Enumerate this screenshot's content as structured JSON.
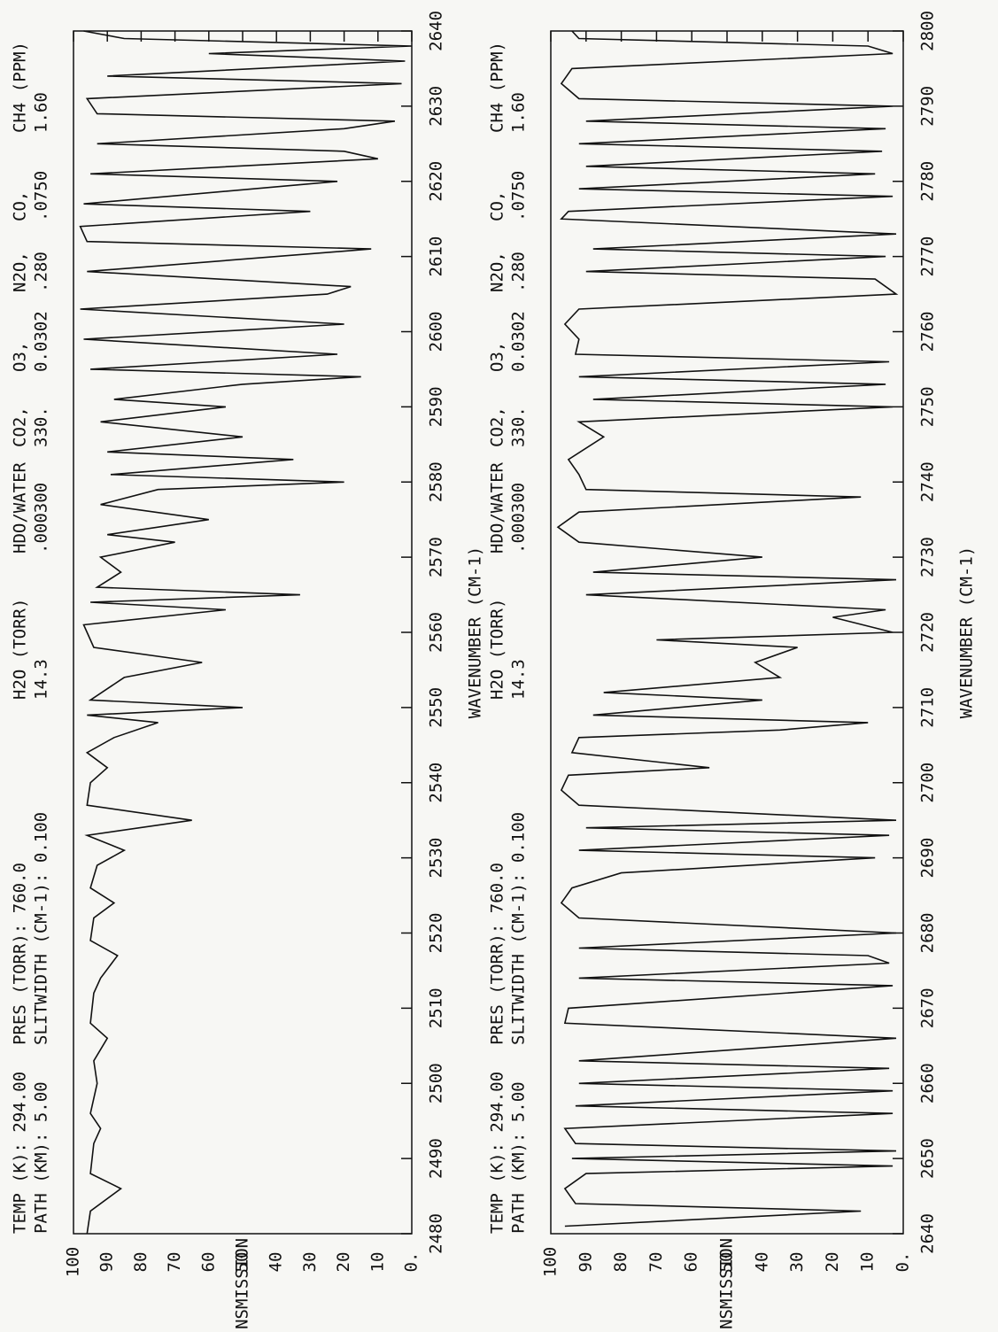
{
  "chart_data": [
    {
      "type": "line",
      "header": [
        [
          "TEMP (K): 294.00",
          "PATH (KM): 5.00"
        ],
        [
          "PRES (TORR): 760.0",
          "SLITWIDTH (CM-1): 0.100"
        ],
        [
          "H2O (TORR)",
          "14.3"
        ],
        [
          "HDO/WATER",
          ".000300"
        ],
        [
          "CO2,",
          "330."
        ],
        [
          "O3,",
          "0.0302"
        ],
        [
          "N2O,",
          ".280"
        ],
        [
          "CO,",
          ".0750"
        ],
        [
          "CH4 (PPM)",
          "1.60"
        ]
      ],
      "x_label": "WAVENUMBER (CM-1)",
      "y_label": "% TRANSMISSION",
      "xlim": [
        2480,
        2640
      ],
      "xticks": [
        2480,
        2490,
        2500,
        2510,
        2520,
        2530,
        2540,
        2550,
        2560,
        2570,
        2580,
        2590,
        2600,
        2610,
        2620,
        2630,
        2640
      ],
      "ylim": [
        0,
        100
      ],
      "yticks": [
        {
          "value": 0,
          "label": "0."
        },
        10,
        20,
        30,
        40,
        50,
        60,
        70,
        80,
        90,
        100
      ],
      "x": [
        2480,
        2483,
        2486,
        2488,
        2492,
        2494,
        2496,
        2500,
        2503,
        2506,
        2508,
        2512,
        2514,
        2517,
        2519,
        2522,
        2524,
        2526,
        2529,
        2531,
        2533,
        2535,
        2537,
        2540,
        2542,
        2544,
        2546,
        2548,
        2549,
        2550,
        2551,
        2554,
        2556,
        2558,
        2561,
        2563,
        2564,
        2565,
        2566,
        2568,
        2570,
        2572,
        2573,
        2575,
        2577,
        2579,
        2580,
        2581,
        2583,
        2584,
        2586,
        2588,
        2590,
        2591,
        2593,
        2594,
        2595,
        2597,
        2599,
        2601,
        2603,
        2605,
        2606,
        2608,
        2611,
        2612,
        2614,
        2616,
        2617,
        2620,
        2621,
        2623,
        2624,
        2625,
        2627,
        2628,
        2629,
        2631,
        2633,
        2634,
        2636,
        2637,
        2638,
        2639,
        2640
      ],
      "series": [
        {
          "color": "#111111",
          "values": [
            96,
            95,
            86,
            95,
            94,
            92,
            95,
            93,
            94,
            90,
            95,
            94,
            92,
            87,
            95,
            94,
            88,
            95,
            93,
            85,
            96,
            65,
            96,
            95,
            90,
            96,
            88,
            75,
            96,
            50,
            95,
            85,
            62,
            94,
            97,
            55,
            95,
            33,
            93,
            86,
            92,
            70,
            90,
            60,
            92,
            75,
            20,
            89,
            35,
            90,
            50,
            92,
            55,
            88,
            50,
            15,
            95,
            22,
            97,
            20,
            98,
            25,
            18,
            96,
            12,
            96,
            98,
            30,
            97,
            22,
            95,
            10,
            20,
            93,
            20,
            5,
            93,
            96,
            3,
            90,
            2,
            60,
            0,
            85,
            97
          ]
        }
      ]
    },
    {
      "type": "line",
      "header": [
        [
          "TEMP (K): 294.00",
          "PATH (KM): 5.00"
        ],
        [
          "PRES (TORR): 760.0",
          "SLITWIDTH (CM-1): 0.100"
        ],
        [
          "H2O (TORR)",
          "14.3"
        ],
        [
          "HDO/WATER",
          ".000300"
        ],
        [
          "CO2,",
          "330."
        ],
        [
          "O3,",
          "0.0302"
        ],
        [
          "N2O,",
          ".280"
        ],
        [
          "CO,",
          ".0750"
        ],
        [
          "CH4 (PPM)",
          "1.60"
        ]
      ],
      "x_label": "WAVENUMBER (CM-1)",
      "y_label": "% TRANSMISSION",
      "xlim": [
        2640,
        2800
      ],
      "xticks": [
        2640,
        2650,
        2660,
        2670,
        2680,
        2690,
        2700,
        2710,
        2720,
        2730,
        2740,
        2750,
        2760,
        2770,
        2780,
        2790,
        2800
      ],
      "ylim": [
        0,
        100
      ],
      "yticks": [
        {
          "value": 0,
          "label": "0."
        },
        10,
        20,
        30,
        40,
        50,
        60,
        70,
        80,
        90,
        100
      ],
      "x": [
        2641,
        2643,
        2644,
        2646,
        2648,
        2649,
        2650,
        2651,
        2652,
        2654,
        2656,
        2657,
        2659,
        2660,
        2662,
        2663,
        2666,
        2668,
        2670,
        2673,
        2674,
        2676,
        2677,
        2678,
        2680,
        2682,
        2684,
        2686,
        2688,
        2690,
        2691,
        2693,
        2694,
        2695,
        2697,
        2699,
        2701,
        2702,
        2704,
        2706,
        2707,
        2708,
        2709,
        2711,
        2712,
        2714,
        2716,
        2718,
        2719,
        2720,
        2722,
        2723,
        2725,
        2727,
        2728,
        2730,
        2732,
        2734,
        2736,
        2738,
        2739,
        2741,
        2743,
        2746,
        2748,
        2750,
        2751,
        2753,
        2754,
        2756,
        2757,
        2759,
        2761,
        2763,
        2765,
        2767,
        2768,
        2770,
        2771,
        2773,
        2775,
        2776,
        2778,
        2779,
        2781,
        2782,
        2784,
        2785,
        2787,
        2788,
        2790,
        2791,
        2793,
        2795,
        2797,
        2798,
        2799,
        2800
      ],
      "series": [
        {
          "color": "#111111",
          "values": [
            96,
            12,
            93,
            96,
            90,
            3,
            94,
            2,
            93,
            96,
            3,
            93,
            3,
            92,
            4,
            92,
            2,
            96,
            95,
            3,
            92,
            4,
            10,
            92,
            2,
            92,
            97,
            94,
            80,
            8,
            92,
            4,
            90,
            2,
            92,
            97,
            95,
            55,
            94,
            92,
            35,
            10,
            88,
            40,
            85,
            35,
            42,
            30,
            70,
            3,
            20,
            5,
            90,
            2,
            88,
            40,
            92,
            98,
            92,
            12,
            90,
            92,
            95,
            85,
            92,
            3,
            88,
            5,
            92,
            4,
            93,
            92,
            96,
            92,
            2,
            8,
            90,
            5,
            88,
            2,
            97,
            95,
            3,
            92,
            8,
            90,
            6,
            92,
            5,
            90,
            3,
            92,
            97,
            94,
            3,
            10,
            92,
            94
          ]
        }
      ]
    }
  ]
}
